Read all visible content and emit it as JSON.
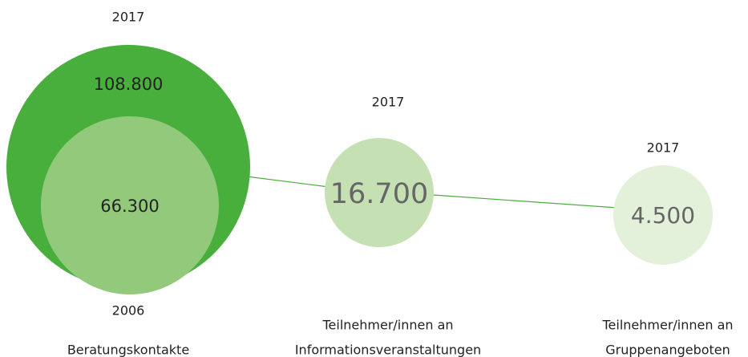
{
  "bubbles": [
    {
      "year": "2017",
      "value": "108.800",
      "inner_value": "66.300",
      "inner_year": "2006",
      "caption": [
        "Beratungskontakte"
      ]
    },
    {
      "year": "2017",
      "value": "16.700",
      "caption": [
        "Teilnehmer/innen an",
        "Informationsveranstaltungen"
      ]
    },
    {
      "year": "2017",
      "value": "4.500",
      "caption": [
        "Teilnehmer/innen an",
        "Gruppenangeboten"
      ]
    }
  ]
}
